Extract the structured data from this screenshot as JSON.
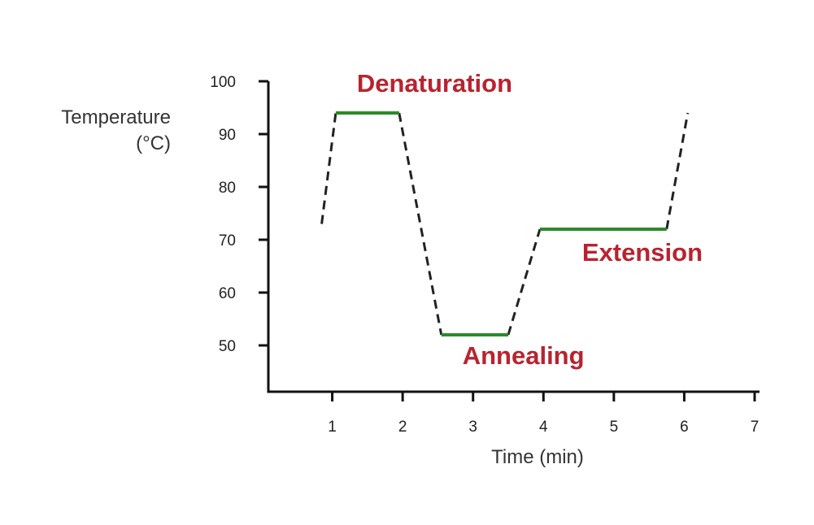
{
  "chart_data": {
    "type": "line",
    "title": "",
    "xlabel": "Time (min)",
    "ylabel_lines": [
      "Temperature",
      "(°C)"
    ],
    "xlim": [
      0,
      7
    ],
    "ylim": [
      42,
      100
    ],
    "x_ticks": [
      1,
      2,
      3,
      4,
      5,
      6,
      7
    ],
    "y_ticks": [
      50,
      60,
      70,
      80,
      90,
      100
    ],
    "grid": false,
    "legend": "none",
    "colors": {
      "plateau": "#2a8a2a",
      "ramp": "#222222",
      "label": "#b8232f",
      "axis": "#111111"
    },
    "ramps": [
      {
        "x": [
          0.85,
          1.05
        ],
        "y": [
          73,
          94
        ]
      },
      {
        "x": [
          1.95,
          2.55
        ],
        "y": [
          94,
          52
        ]
      },
      {
        "x": [
          3.5,
          3.95
        ],
        "y": [
          52,
          72
        ]
      },
      {
        "x": [
          5.75,
          6.05
        ],
        "y": [
          72,
          94
        ]
      }
    ],
    "plateaus": [
      {
        "name": "Denaturation",
        "x": [
          1.05,
          1.95
        ],
        "y": 94
      },
      {
        "name": "Annealing",
        "x": [
          2.55,
          3.5
        ],
        "y": 52
      },
      {
        "name": "Extension",
        "x": [
          3.95,
          5.75
        ],
        "y": 72
      }
    ],
    "annotations": [
      {
        "text": "Denaturation",
        "x": 1.35,
        "y": 98
      },
      {
        "text": "Annealing",
        "x": 2.85,
        "y": 46.5
      },
      {
        "text": "Extension",
        "x": 4.55,
        "y": 66
      }
    ]
  }
}
